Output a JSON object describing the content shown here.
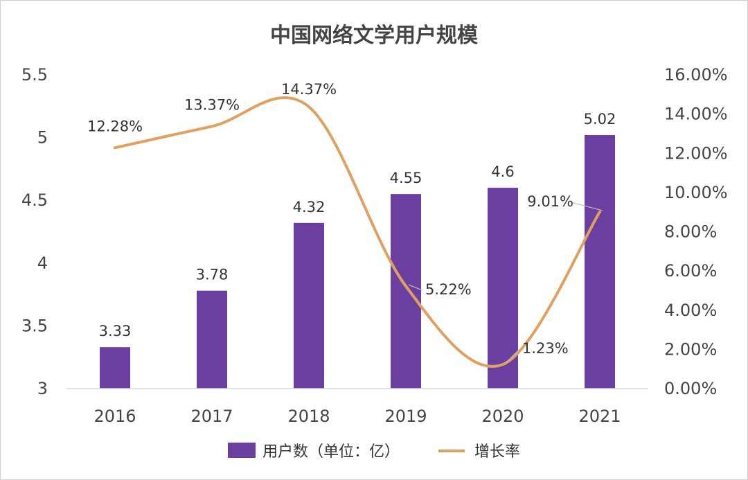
{
  "chart_data": {
    "type": "bar",
    "title": "中国网络文学用户规模",
    "categories": [
      "2016",
      "2017",
      "2018",
      "2019",
      "2020",
      "2021"
    ],
    "series": [
      {
        "name": "用户数（单位：亿）",
        "type": "bar",
        "axis": "left",
        "color": "#6a3fa0",
        "values": [
          3.33,
          3.78,
          4.32,
          4.55,
          4.6,
          5.02
        ],
        "labels": [
          "3.33",
          "3.78",
          "4.32",
          "4.55",
          "4.6",
          "5.02"
        ]
      },
      {
        "name": "增长率",
        "type": "line",
        "smooth": true,
        "axis": "right",
        "color": "#e0a060",
        "values": [
          12.28,
          13.37,
          14.37,
          5.22,
          1.23,
          9.01
        ],
        "labels": [
          "12.28%",
          "13.37%",
          "14.37%",
          "5.22%",
          "1.23%",
          "9.01%"
        ]
      }
    ],
    "y_left": {
      "range": [
        3,
        5.5
      ],
      "ticks": [
        3,
        3.5,
        4,
        4.5,
        5,
        5.5
      ],
      "tick_labels": [
        "3",
        "3.5",
        "4",
        "4.5",
        "5",
        "5.5"
      ]
    },
    "y_right": {
      "range": [
        0,
        16
      ],
      "ticks": [
        0,
        2,
        4,
        6,
        8,
        10,
        12,
        14,
        16
      ],
      "tick_labels": [
        "0.00%",
        "2.00%",
        "4.00%",
        "6.00%",
        "8.00%",
        "10.00%",
        "12.00%",
        "14.00%",
        "16.00%"
      ]
    },
    "grid": false,
    "legend_position": "bottom"
  }
}
